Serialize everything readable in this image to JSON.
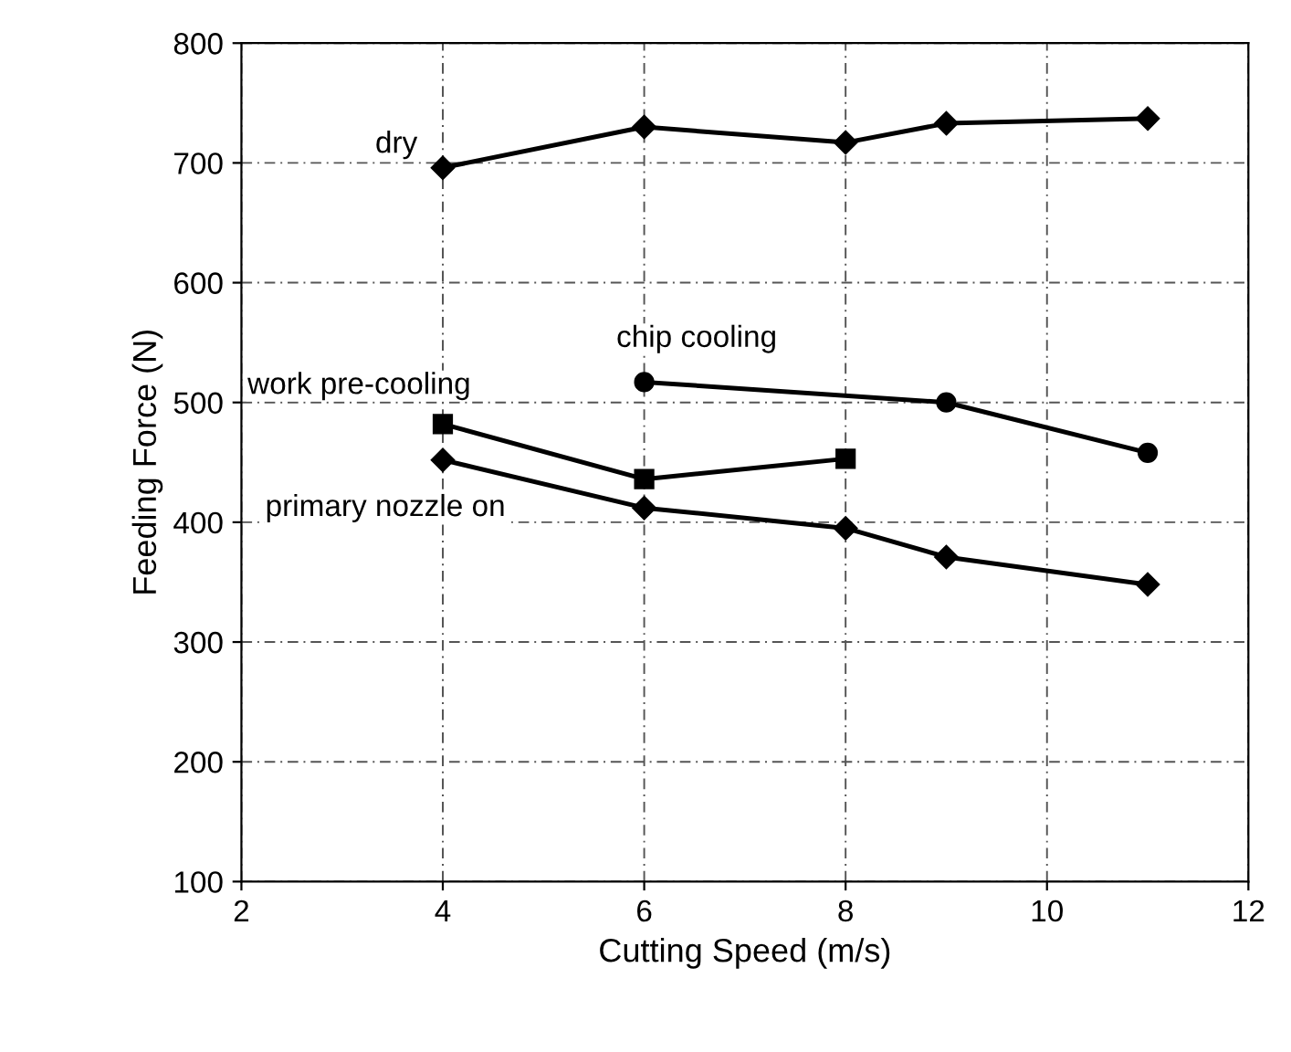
{
  "chart_data": {
    "type": "line",
    "xlabel": "Cutting Speed (m/s)",
    "ylabel": "Feeding Force (N)",
    "xlim": [
      2,
      12
    ],
    "xticks": [
      2,
      4,
      6,
      8,
      10,
      12
    ],
    "ylim": [
      100,
      800
    ],
    "yticks": [
      100,
      200,
      300,
      400,
      500,
      600,
      700,
      800
    ],
    "grid": true,
    "line_style": "solid",
    "series": [
      {
        "name": "dry",
        "color": "#000000",
        "marker": "diamond",
        "x": [
          4,
          6,
          8,
          9,
          11
        ],
        "values": [
          696,
          730,
          717,
          733,
          737
        ]
      },
      {
        "name": "chip cooling",
        "color": "#000000",
        "marker": "circle",
        "x": [
          6,
          9,
          11
        ],
        "values": [
          517,
          500,
          458
        ]
      },
      {
        "name": "work pre-cooling",
        "color": "#000000",
        "marker": "square",
        "x": [
          4,
          6,
          8
        ],
        "values": [
          482,
          436,
          453
        ]
      },
      {
        "name": "primary nozzle on",
        "color": "#000000",
        "marker": "diamond",
        "x": [
          4,
          6,
          8,
          9,
          11
        ],
        "values": [
          452,
          412,
          395,
          371,
          348
        ]
      }
    ]
  }
}
